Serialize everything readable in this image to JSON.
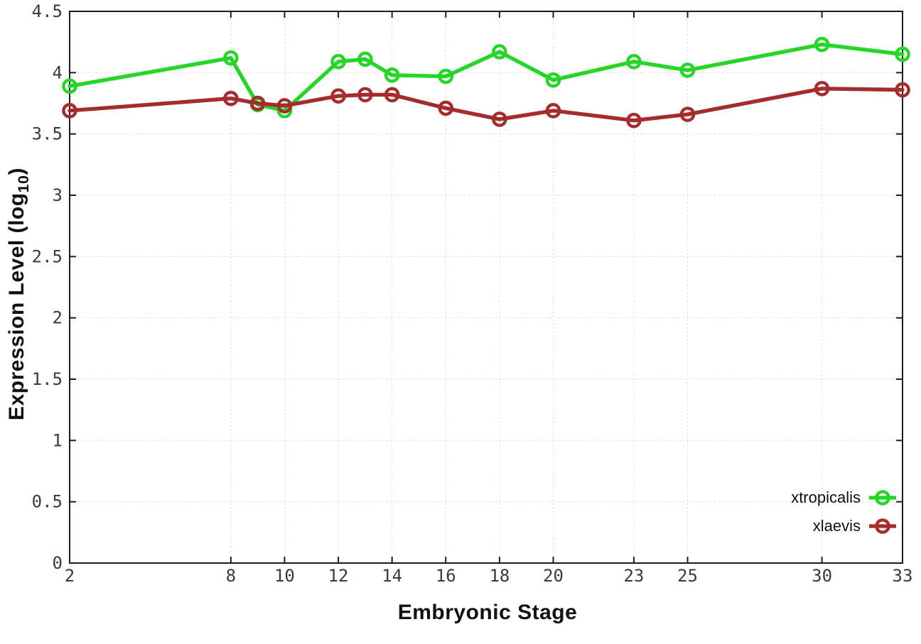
{
  "figure": {
    "background": "#ffffff"
  },
  "chart_data": {
    "type": "line",
    "title": "",
    "xlabel": "Embryonic Stage",
    "ylabel": "Expression Level (log10)",
    "ylabel_parts": {
      "prefix": "Expression Level (log",
      "sub": "10",
      "suffix": ")"
    },
    "x": [
      2,
      8,
      9,
      10,
      12,
      13,
      14,
      16,
      18,
      20,
      23,
      25,
      30,
      33
    ],
    "series": [
      {
        "name": "xtropicalis",
        "color": "#26d626",
        "values": [
          3.89,
          4.12,
          3.74,
          3.69,
          4.09,
          4.11,
          3.98,
          3.97,
          4.17,
          3.94,
          4.09,
          4.02,
          4.23,
          4.15
        ]
      },
      {
        "name": "xlaevis",
        "color": "#a52c2c",
        "values": [
          3.69,
          3.79,
          3.75,
          3.73,
          3.81,
          3.82,
          3.82,
          3.71,
          3.62,
          3.69,
          3.61,
          3.66,
          3.87,
          3.86
        ]
      }
    ],
    "xlim": [
      2,
      33
    ],
    "ylim": [
      0,
      4.5
    ],
    "xticks": {
      "values": [
        2,
        8,
        10,
        12,
        14,
        16,
        18,
        20,
        23,
        25,
        30,
        33
      ],
      "labels": [
        "2",
        "8",
        "10",
        "12",
        "14",
        "16",
        "18",
        "20",
        "23",
        "25",
        "30",
        "33"
      ]
    },
    "yticks": {
      "values": [
        0,
        0.5,
        1,
        1.5,
        2,
        2.5,
        3,
        3.5,
        4,
        4.5
      ],
      "labels": [
        "0",
        "0.5",
        "1",
        "1.5",
        "2",
        "2.5",
        "3",
        "3.5",
        "4",
        "4.5"
      ]
    },
    "grid": true,
    "legend_position": "bottom-right",
    "marker": "open-circle",
    "grid_color": "#c6c6c6",
    "axis_color": "#1c1c1c"
  }
}
